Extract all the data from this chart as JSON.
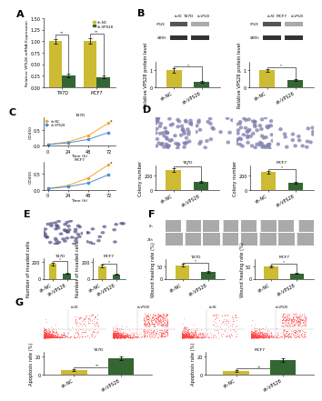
{
  "panel_A": {
    "ylabel": "Relative VPS28 mRNA Expression",
    "categories": [
      "T47D",
      "MCF7"
    ],
    "sh_NC": [
      1.0,
      1.0
    ],
    "sh_VPS28": [
      0.25,
      0.22
    ],
    "sh_NC_err": [
      0.05,
      0.06
    ],
    "sh_VPS28_err": [
      0.04,
      0.03
    ],
    "color_NC": "#ccbb33",
    "color_VPS28": "#336633",
    "ylim": [
      0,
      1.5
    ]
  },
  "panel_B_T47D": {
    "title": "T47D",
    "ylabel": "Relative VPS28 protein level",
    "sh_NC": [
      1.0
    ],
    "sh_VPS28": [
      0.3
    ],
    "sh_NC_err": [
      0.12
    ],
    "sh_VPS28_err": [
      0.05
    ],
    "color_NC": "#ccbb33",
    "color_VPS28": "#336633",
    "ylim": [
      0,
      1.5
    ]
  },
  "panel_B_MCF7": {
    "title": "MCF7",
    "ylabel": "Relative VPS28 protein level",
    "sh_NC": [
      1.0
    ],
    "sh_VPS28": [
      0.42
    ],
    "sh_NC_err": [
      0.1
    ],
    "sh_VPS28_err": [
      0.06
    ],
    "color_NC": "#ccbb33",
    "color_VPS28": "#336633",
    "ylim": [
      0,
      1.5
    ]
  },
  "panel_C_T47D": {
    "title": "T47D",
    "xlabel": "Time (h)",
    "ylabel": "OD450",
    "time": [
      0,
      24,
      48,
      72
    ],
    "sh_NC": [
      0.04,
      0.12,
      0.32,
      0.72
    ],
    "sh_VPS28": [
      0.04,
      0.09,
      0.2,
      0.42
    ],
    "color_NC": "#f5a623",
    "color_VPS28": "#4a90d9",
    "ylim": [
      0,
      0.9
    ]
  },
  "panel_C_MCF7": {
    "title": "MCF7",
    "xlabel": "Time (h)",
    "ylabel": "OD450",
    "time": [
      0,
      24,
      48,
      72
    ],
    "sh_NC": [
      0.04,
      0.14,
      0.38,
      0.8
    ],
    "sh_VPS28": [
      0.04,
      0.1,
      0.22,
      0.48
    ],
    "color_NC": "#f5a623",
    "color_VPS28": "#4a90d9",
    "ylim": [
      0,
      0.9
    ]
  },
  "panel_D_T47D": {
    "title": "T47D",
    "ylabel": "Colony number",
    "sh_NC": [
      280
    ],
    "sh_VPS28": [
      110
    ],
    "sh_NC_err": [
      25
    ],
    "sh_VPS28_err": [
      12
    ],
    "color_NC": "#ccbb33",
    "color_VPS28": "#336633",
    "ylim": [
      0,
      350
    ]
  },
  "panel_D_MCF7": {
    "title": "MCF7",
    "ylabel": "Colony number",
    "sh_NC": [
      250
    ],
    "sh_VPS28": [
      100
    ],
    "sh_NC_err": [
      22
    ],
    "sh_VPS28_err": [
      10
    ],
    "color_NC": "#ccbb33",
    "color_VPS28": "#336633",
    "ylim": [
      0,
      350
    ]
  },
  "panel_E_T47D": {
    "title": "T47D",
    "ylabel": "Number of invaded cells",
    "sh_NC": [
      180
    ],
    "sh_VPS28": [
      65
    ],
    "sh_NC_err": [
      18
    ],
    "sh_VPS28_err": [
      8
    ],
    "color_NC": "#ccbb33",
    "color_VPS28": "#336633",
    "ylim": [
      0,
      250
    ]
  },
  "panel_E_MCF7": {
    "title": "MCF7",
    "ylabel": "Number of invaded cells",
    "sh_NC": [
      155
    ],
    "sh_VPS28": [
      55
    ],
    "sh_NC_err": [
      15
    ],
    "sh_VPS28_err": [
      7
    ],
    "color_NC": "#ccbb33",
    "color_VPS28": "#336633",
    "ylim": [
      0,
      250
    ]
  },
  "panel_F_T47D": {
    "title": "T47D",
    "ylabel": "Wound healing rate (%)",
    "sh_NC": [
      55
    ],
    "sh_VPS28": [
      28
    ],
    "sh_NC_err": [
      5
    ],
    "sh_VPS28_err": [
      4
    ],
    "color_NC": "#ccbb33",
    "color_VPS28": "#336633",
    "ylim": [
      0,
      80
    ]
  },
  "panel_F_MCF7": {
    "title": "MCF7",
    "ylabel": "Wound healing rate (%)",
    "sh_NC": [
      50
    ],
    "sh_VPS28": [
      22
    ],
    "sh_NC_err": [
      5
    ],
    "sh_VPS28_err": [
      3
    ],
    "color_NC": "#ccbb33",
    "color_VPS28": "#336633",
    "ylim": [
      0,
      80
    ]
  },
  "panel_G_T47D": {
    "title": "T47D",
    "ylabel": "Apoptosis rate (%)",
    "sh_NC": [
      5
    ],
    "sh_VPS28": [
      18
    ],
    "sh_NC_err": [
      1
    ],
    "sh_VPS28_err": [
      2
    ],
    "color_NC": "#ccbb33",
    "color_VPS28": "#336633",
    "ylim": [
      0,
      25
    ]
  },
  "panel_G_MCF7": {
    "title": "MCF7",
    "ylabel": "Apoptosis rate (%)",
    "sh_NC": [
      4
    ],
    "sh_VPS28": [
      16
    ],
    "sh_NC_err": [
      0.8
    ],
    "sh_VPS28_err": [
      2
    ],
    "color_NC": "#ccbb33",
    "color_VPS28": "#336633",
    "ylim": [
      0,
      25
    ]
  },
  "bg_color": "#ffffff",
  "lbl_size": 8,
  "axis_label_size": 4.0,
  "tick_size": 3.5
}
